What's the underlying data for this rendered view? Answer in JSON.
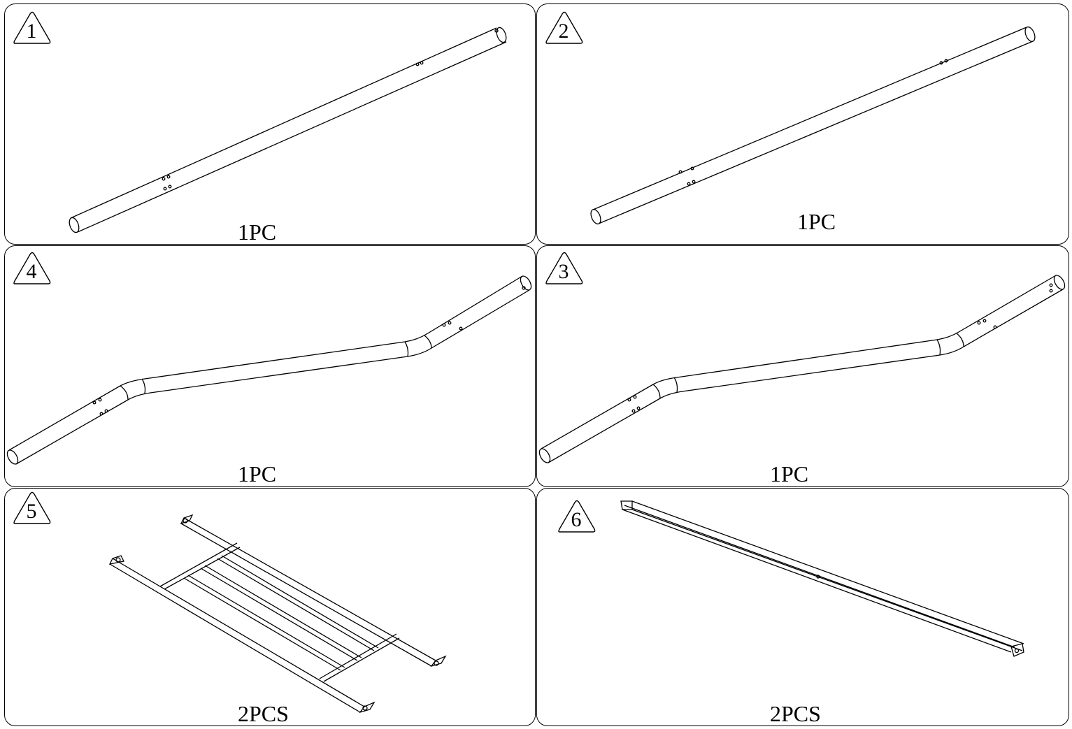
{
  "panels": [
    {
      "number": "1",
      "quantity": "1PC"
    },
    {
      "number": "2",
      "quantity": "1PC"
    },
    {
      "number": "4",
      "quantity": "1PC"
    },
    {
      "number": "3",
      "quantity": "1PC"
    },
    {
      "number": "5",
      "quantity": "2PCS"
    },
    {
      "number": "6",
      "quantity": "2PCS"
    }
  ]
}
